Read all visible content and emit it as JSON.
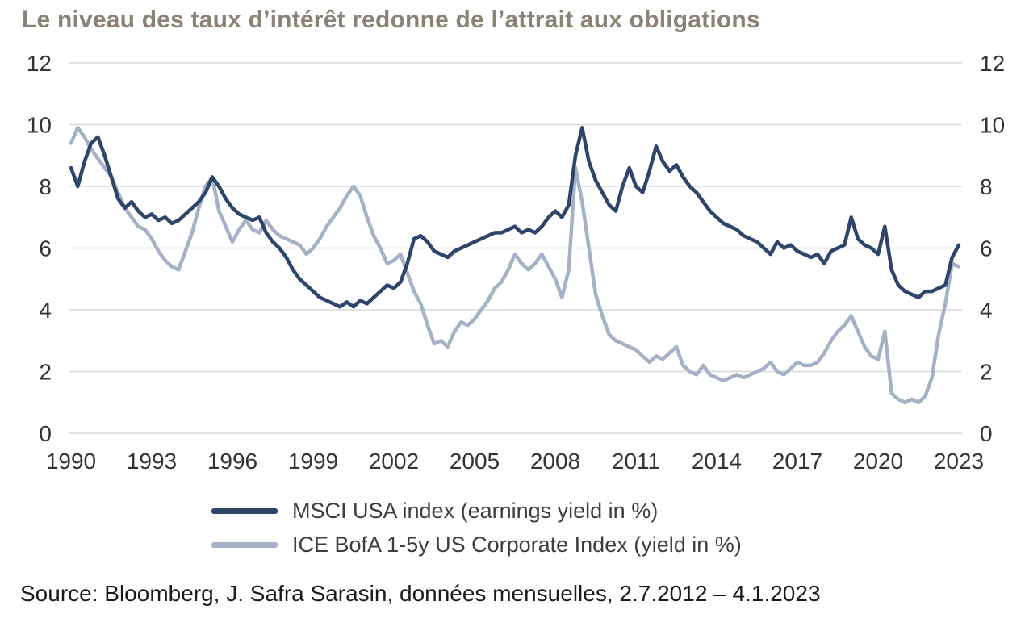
{
  "title": "Le niveau des taux d’intérêt redonne de l’attrait aux obligations",
  "source": "Source: Bloomberg, J. Safra Sarasin, données mensuelles, 2.7.2012 – 4.1.2023",
  "colors": {
    "title": "#8a8177",
    "tick_text": "#333333",
    "grid": "#d9d9d9",
    "msci_line": "#2e4469",
    "ice_line": "#a6b0c6",
    "background": "#ffffff"
  },
  "legend": [
    {
      "label": "MSCI USA index (earnings yield in %)",
      "color": "#2e4469"
    },
    {
      "label": "ICE BofA 1-5y US Corporate Index (yield in %)",
      "color": "#a6b0c6"
    }
  ],
  "chart_data": {
    "type": "line",
    "title": "Le niveau des taux d’intérêt redonne de l’attrait aux obligations",
    "xlabel": "",
    "ylabel": "",
    "x_unit": "year",
    "y_unit": "percent",
    "xlim": [
      1990,
      2023
    ],
    "ylim": [
      0,
      12
    ],
    "xticks": [
      1990,
      1993,
      1996,
      1999,
      2002,
      2005,
      2008,
      2011,
      2014,
      2017,
      2020,
      2023
    ],
    "yticks": [
      0,
      2,
      4,
      6,
      8,
      10,
      12
    ],
    "y_axis_sides": "both",
    "grid": "horizontal",
    "legend_position": "bottom",
    "x_start": 1990,
    "x_step": 0.25,
    "series": [
      {
        "name": "MSCI USA index (earnings yield in %)",
        "color": "#2e4469",
        "values": [
          8.6,
          8.0,
          8.8,
          9.4,
          9.6,
          9.0,
          8.3,
          7.6,
          7.3,
          7.5,
          7.2,
          7.0,
          7.1,
          6.9,
          7.0,
          6.8,
          6.9,
          7.1,
          7.3,
          7.5,
          7.8,
          8.3,
          8.0,
          7.6,
          7.3,
          7.1,
          7.0,
          6.9,
          7.0,
          6.5,
          6.2,
          6.0,
          5.7,
          5.3,
          5.0,
          4.8,
          4.6,
          4.4,
          4.3,
          4.2,
          4.1,
          4.25,
          4.1,
          4.3,
          4.2,
          4.4,
          4.6,
          4.8,
          4.7,
          4.9,
          5.5,
          6.3,
          6.4,
          6.2,
          5.9,
          5.8,
          5.7,
          5.9,
          6.0,
          6.1,
          6.2,
          6.3,
          6.4,
          6.5,
          6.5,
          6.6,
          6.7,
          6.5,
          6.6,
          6.5,
          6.7,
          7.0,
          7.2,
          7.0,
          7.4,
          9.0,
          9.9,
          8.8,
          8.2,
          7.8,
          7.4,
          7.2,
          8.0,
          8.6,
          8.0,
          7.8,
          8.5,
          9.3,
          8.8,
          8.5,
          8.7,
          8.3,
          8.0,
          7.8,
          7.5,
          7.2,
          7.0,
          6.8,
          6.7,
          6.6,
          6.4,
          6.3,
          6.2,
          6.0,
          5.8,
          6.2,
          6.0,
          6.1,
          5.9,
          5.8,
          5.7,
          5.8,
          5.5,
          5.9,
          6.0,
          6.1,
          7.0,
          6.3,
          6.1,
          6.0,
          5.8,
          6.7,
          5.3,
          4.8,
          4.6,
          4.5,
          4.4,
          4.6,
          4.6,
          4.7,
          4.8,
          5.7,
          6.1
        ]
      },
      {
        "name": "ICE BofA 1-5y US Corporate Index (yield in %)",
        "color": "#a6b0c6",
        "values": [
          9.4,
          9.9,
          9.6,
          9.2,
          8.9,
          8.6,
          8.3,
          7.8,
          7.3,
          7.0,
          6.7,
          6.6,
          6.3,
          5.9,
          5.6,
          5.4,
          5.3,
          5.9,
          6.5,
          7.3,
          8.0,
          8.3,
          7.2,
          6.7,
          6.2,
          6.6,
          6.9,
          6.6,
          6.5,
          6.9,
          6.6,
          6.4,
          6.3,
          6.2,
          6.1,
          5.8,
          6.0,
          6.3,
          6.7,
          7.0,
          7.3,
          7.7,
          8.0,
          7.7,
          7.0,
          6.4,
          6.0,
          5.5,
          5.6,
          5.8,
          5.2,
          4.6,
          4.2,
          3.5,
          2.9,
          3.0,
          2.8,
          3.3,
          3.6,
          3.5,
          3.7,
          4.0,
          4.3,
          4.7,
          4.9,
          5.3,
          5.8,
          5.5,
          5.3,
          5.5,
          5.8,
          5.4,
          5.0,
          4.4,
          5.3,
          8.6,
          7.5,
          6.0,
          4.5,
          3.8,
          3.2,
          3.0,
          2.9,
          2.8,
          2.7,
          2.5,
          2.3,
          2.5,
          2.4,
          2.6,
          2.8,
          2.2,
          2.0,
          1.9,
          2.2,
          1.9,
          1.8,
          1.7,
          1.8,
          1.9,
          1.8,
          1.9,
          2.0,
          2.1,
          2.3,
          2.0,
          1.9,
          2.1,
          2.3,
          2.2,
          2.2,
          2.3,
          2.6,
          3.0,
          3.3,
          3.5,
          3.8,
          3.3,
          2.8,
          2.5,
          2.4,
          3.3,
          1.3,
          1.1,
          1.0,
          1.1,
          1.0,
          1.2,
          1.8,
          3.2,
          4.2,
          5.5,
          5.4
        ]
      }
    ]
  }
}
